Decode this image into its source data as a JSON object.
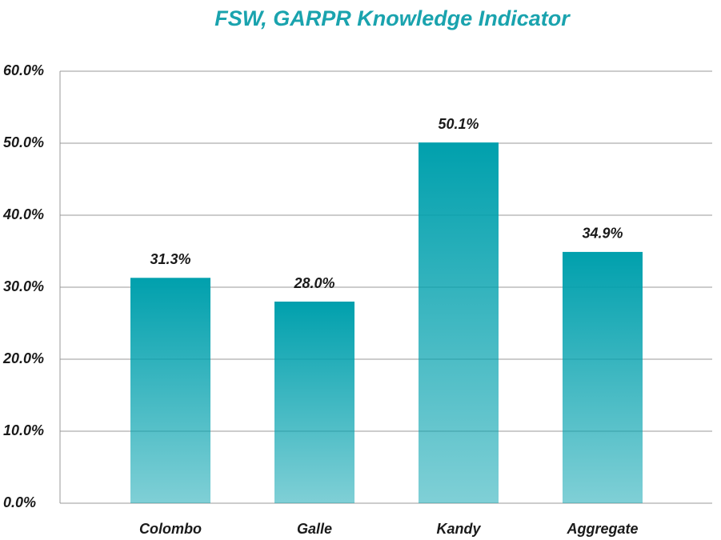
{
  "chart_data": {
    "type": "bar",
    "title": "FSW, GARPR Knowledge Indicator",
    "categories": [
      "Colombo",
      "Galle",
      "Kandy",
      "Aggregate"
    ],
    "values": [
      31.3,
      28.0,
      50.1,
      34.9
    ],
    "value_labels": [
      "31.3%",
      "28.0%",
      "50.1%",
      "34.9%"
    ],
    "color": "#00a0ad",
    "ylim": [
      0,
      60
    ],
    "yticks": [
      {
        "value": 0,
        "label": "0.0%"
      },
      {
        "value": 10,
        "label": "10.0%"
      },
      {
        "value": 20,
        "label": "20.0%"
      },
      {
        "value": 30,
        "label": "30.0%"
      },
      {
        "value": 40,
        "label": "40.0%"
      },
      {
        "value": 50,
        "label": "50.0%"
      },
      {
        "value": 60,
        "label": "60.0%"
      }
    ],
    "grid": true
  }
}
